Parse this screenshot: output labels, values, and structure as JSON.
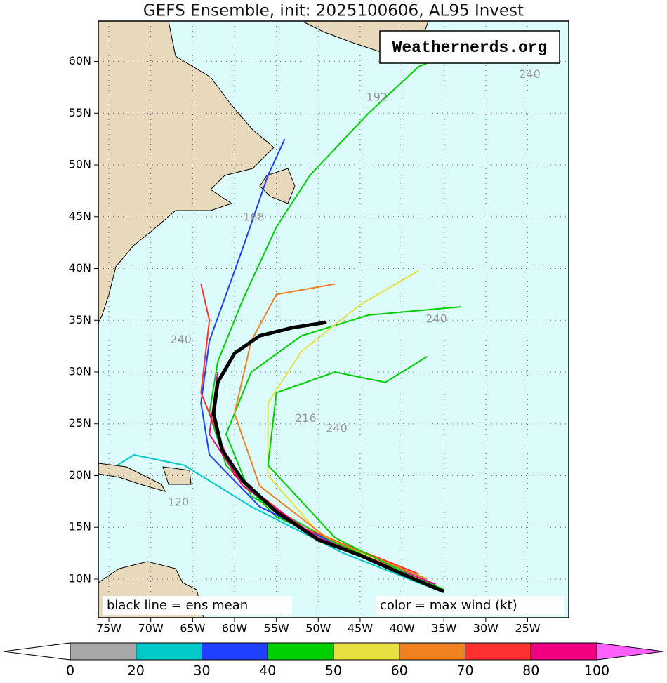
{
  "chart_data": {
    "type": "track-map",
    "title": "GEFS Ensemble, init: 2025100606, AL95 Invest",
    "watermark": "Weathernerds.org",
    "note_left": "black line = ens mean",
    "note_right": "color = max wind (kt)",
    "xlim": [
      -76.26,
      -20.1
    ],
    "ylim": [
      6.27,
      63.9
    ],
    "xticks": [
      {
        "value": -75,
        "label": "75W"
      },
      {
        "value": -70,
        "label": "70W"
      },
      {
        "value": -65,
        "label": "65W"
      },
      {
        "value": -60,
        "label": "60W"
      },
      {
        "value": -55,
        "label": "55W"
      },
      {
        "value": -50,
        "label": "50W"
      },
      {
        "value": -45,
        "label": "45W"
      },
      {
        "value": -40,
        "label": "40W"
      },
      {
        "value": -35,
        "label": "35W"
      },
      {
        "value": -30,
        "label": "30W"
      },
      {
        "value": -25,
        "label": "25W"
      }
    ],
    "yticks": [
      {
        "value": 10,
        "label": "10N"
      },
      {
        "value": 15,
        "label": "15N"
      },
      {
        "value": 20,
        "label": "20N"
      },
      {
        "value": 25,
        "label": "25N"
      },
      {
        "value": 30,
        "label": "30N"
      },
      {
        "value": 35,
        "label": "35N"
      },
      {
        "value": 40,
        "label": "40N"
      },
      {
        "value": 45,
        "label": "45N"
      },
      {
        "value": 50,
        "label": "50N"
      },
      {
        "value": 55,
        "label": "55N"
      },
      {
        "value": 60,
        "label": "60N"
      }
    ],
    "grid": true,
    "mean_track": {
      "color": "#000000",
      "lon": [
        -35,
        -40,
        -45,
        -50,
        -55,
        -59,
        -61.5,
        -62.5,
        -62,
        -60,
        -57,
        -53,
        -49
      ],
      "lat": [
        8.8,
        10.5,
        12.3,
        13.8,
        16.5,
        19.5,
        22.5,
        26,
        29,
        31.8,
        33.5,
        34.3,
        34.8
      ]
    },
    "tracks": [
      {
        "color": "#00d000",
        "lon": [
          -35,
          -45,
          -55,
          -61,
          -63,
          -62,
          -59,
          -55,
          -51,
          -44,
          -38,
          -35
        ],
        "lat": [
          9,
          12.5,
          16,
          21,
          26,
          31,
          37,
          44,
          49,
          55,
          59.5,
          60.5
        ]
      },
      {
        "color": "#2040ff",
        "lon": [
          -36,
          -47,
          -57,
          -63,
          -64,
          -63,
          -59,
          -56,
          -54
        ],
        "lat": [
          9.5,
          13,
          17,
          22,
          27,
          33,
          42,
          49,
          52.5
        ]
      },
      {
        "color": "#00d000",
        "lon": [
          -37,
          -48,
          -58,
          -61,
          -58,
          -52,
          -44,
          -33
        ],
        "lat": [
          10,
          13.5,
          18,
          24,
          30,
          33.5,
          35.5,
          36.3
        ]
      },
      {
        "color": "#e8e040",
        "lon": [
          -38,
          -50,
          -56,
          -56,
          -52,
          -45,
          -38
        ],
        "lat": [
          10,
          14.5,
          20,
          27,
          32,
          36.5,
          39.8
        ]
      },
      {
        "color": "#00c8c8",
        "lon": [
          -36,
          -47,
          -58,
          -66,
          -72,
          -74
        ],
        "lat": [
          9,
          12.5,
          17,
          21,
          22,
          21
        ]
      },
      {
        "color": "#ff3030",
        "lon": [
          -38,
          -52,
          -60,
          -64,
          -63,
          -64
        ],
        "lat": [
          10.5,
          15,
          20,
          28,
          35,
          38.5
        ]
      },
      {
        "color": "#f08020",
        "lon": [
          -37,
          -49,
          -57,
          -60,
          -58,
          -55,
          -48
        ],
        "lat": [
          10,
          14,
          19,
          26,
          33,
          37.5,
          38.5
        ]
      },
      {
        "color": "#f00080",
        "lon": [
          -36,
          -50,
          -59,
          -63,
          -62
        ],
        "lat": [
          9.5,
          14,
          19,
          24,
          30
        ]
      },
      {
        "color": "#00d000",
        "lon": [
          -37,
          -48,
          -56,
          -55,
          -48,
          -42,
          -37
        ],
        "lat": [
          9.5,
          14,
          21,
          28,
          30,
          29,
          31.5
        ]
      }
    ],
    "hour_labels": [
      {
        "text": "240",
        "lon": -24.75,
        "lat": 58.7
      },
      {
        "text": "192",
        "lon": -43.0,
        "lat": 56.5
      },
      {
        "text": "168",
        "lon": -57.7,
        "lat": 44.9
      },
      {
        "text": "240",
        "lon": -35.9,
        "lat": 35.1
      },
      {
        "text": "216",
        "lon": -51.5,
        "lat": 25.5
      },
      {
        "text": "240",
        "lon": -47.8,
        "lat": 24.5
      },
      {
        "text": "240",
        "lon": -66.4,
        "lat": 33.1
      },
      {
        "text": "120",
        "lon": -66.7,
        "lat": 17.4
      }
    ],
    "colorbar": {
      "ticks": [
        0,
        20,
        30,
        40,
        50,
        60,
        70,
        80,
        100
      ],
      "colors": [
        "#a8a8a8",
        "#00c8c8",
        "#2040ff",
        "#00d000",
        "#e8e040",
        "#f08020",
        "#ff3030",
        "#f00080"
      ],
      "under_color": "#ffffff",
      "over_color": "#ff60ff"
    }
  }
}
